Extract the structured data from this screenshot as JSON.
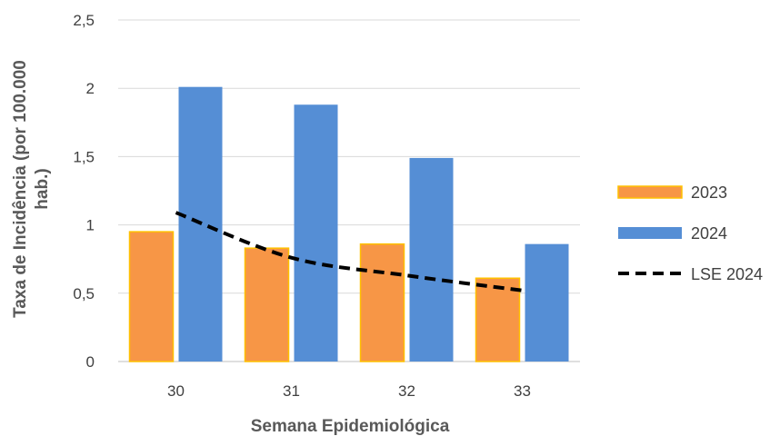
{
  "chart_data": {
    "type": "bar",
    "title": "",
    "xlabel": "Semana Epidemiológica",
    "ylabel_lines": [
      "Taxa de Incidência (por 100.000",
      "hab.)"
    ],
    "categories": [
      "30",
      "31",
      "32",
      "33"
    ],
    "ylim": [
      0,
      2.5
    ],
    "yticks": [
      0,
      0.5,
      1,
      1.5,
      2,
      2.5
    ],
    "ytick_labels": [
      "0",
      "0,5",
      "1",
      "1,5",
      "2",
      "2,5"
    ],
    "grid": true,
    "legend_position": "right",
    "series": [
      {
        "name": "2023",
        "type": "bar",
        "values": [
          0.95,
          0.83,
          0.86,
          0.61
        ],
        "color": "#F79646",
        "border": "#FFC000"
      },
      {
        "name": "2024",
        "type": "bar",
        "values": [
          2.01,
          1.88,
          1.49,
          0.86
        ],
        "color": "#558ED5"
      },
      {
        "name": "LSE 2024",
        "type": "line",
        "style": "dashed",
        "values": [
          1.09,
          0.76,
          0.63,
          0.52
        ],
        "color": "#000000"
      }
    ]
  }
}
